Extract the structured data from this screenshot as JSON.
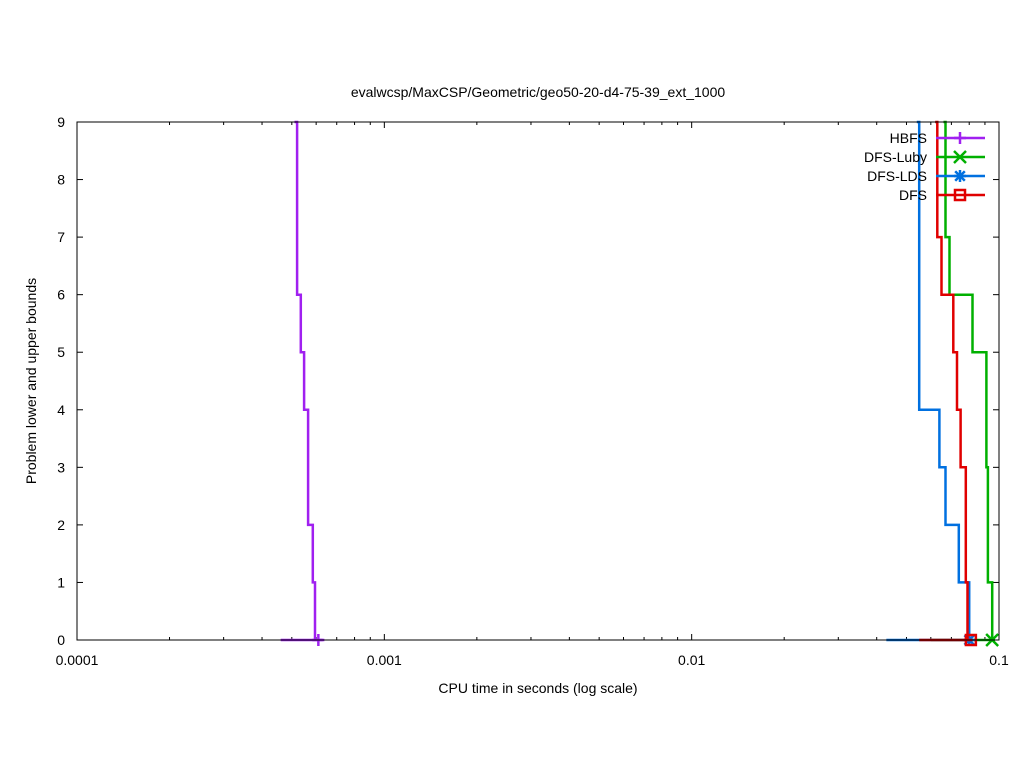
{
  "chart_data": {
    "type": "line",
    "title": "evalwcsp/MaxCSP/Geometric/geo50-20-d4-75-39_ext_1000",
    "xlabel": "CPU time in seconds (log scale)",
    "ylabel": "Problem lower and upper bounds",
    "xscale": "log",
    "xlim": [
      0.0001,
      0.1
    ],
    "ylim": [
      0,
      9
    ],
    "x_ticks": [
      0.0001,
      0.001,
      0.01,
      0.1
    ],
    "x_tick_labels": [
      "0.0001",
      "0.001",
      "0.01",
      "0.1"
    ],
    "y_ticks": [
      0,
      1,
      2,
      3,
      4,
      5,
      6,
      7,
      8,
      9
    ],
    "y_tick_labels": [
      "0",
      "1",
      "2",
      "3",
      "4",
      "5",
      "6",
      "7",
      "8",
      "9"
    ],
    "grid": false,
    "legend_position": "top-right",
    "series": [
      {
        "name": "HBFS",
        "color": "#a020f0",
        "marker": "plus",
        "upper_bound_steps": [
          [
            0.00051,
            9
          ],
          [
            0.00052,
            6
          ],
          [
            0.000535,
            5
          ],
          [
            0.000548,
            4
          ],
          [
            0.000565,
            2
          ],
          [
            0.000585,
            1
          ],
          [
            0.000595,
            0
          ]
        ],
        "lower_bound": [
          [
            0.00046,
            0
          ],
          [
            0.00063,
            0
          ]
        ],
        "final_point": [
          0.00061,
          0
        ]
      },
      {
        "name": "DFS-Luby",
        "color": "#00b000",
        "marker": "x",
        "upper_bound_steps": [
          [
            0.066,
            9
          ],
          [
            0.067,
            7
          ],
          [
            0.069,
            6
          ],
          [
            0.082,
            5
          ],
          [
            0.091,
            3
          ],
          [
            0.092,
            1
          ],
          [
            0.095,
            0
          ]
        ],
        "lower_bound": [
          [
            0.06,
            0
          ],
          [
            0.097,
            0
          ]
        ],
        "final_point": [
          0.095,
          0
        ]
      },
      {
        "name": "DFS-LDS",
        "color": "#0070e0",
        "marker": "star",
        "upper_bound_steps": [
          [
            0.054,
            9
          ],
          [
            0.055,
            4
          ],
          [
            0.064,
            3
          ],
          [
            0.067,
            2
          ],
          [
            0.074,
            1
          ],
          [
            0.08,
            0
          ]
        ],
        "lower_bound": [
          [
            0.043,
            0
          ],
          [
            0.08,
            0
          ]
        ],
        "final_point": [
          0.08,
          0
        ]
      },
      {
        "name": "DFS",
        "color": "#e00000",
        "marker": "square",
        "upper_bound_steps": [
          [
            0.062,
            9
          ],
          [
            0.063,
            7
          ],
          [
            0.065,
            6
          ],
          [
            0.071,
            5
          ],
          [
            0.073,
            4
          ],
          [
            0.075,
            3
          ],
          [
            0.078,
            1
          ],
          [
            0.079,
            0
          ]
        ],
        "lower_bound": [
          [
            0.055,
            0
          ],
          [
            0.082,
            0
          ]
        ],
        "final_point": [
          0.081,
          0
        ]
      }
    ]
  }
}
